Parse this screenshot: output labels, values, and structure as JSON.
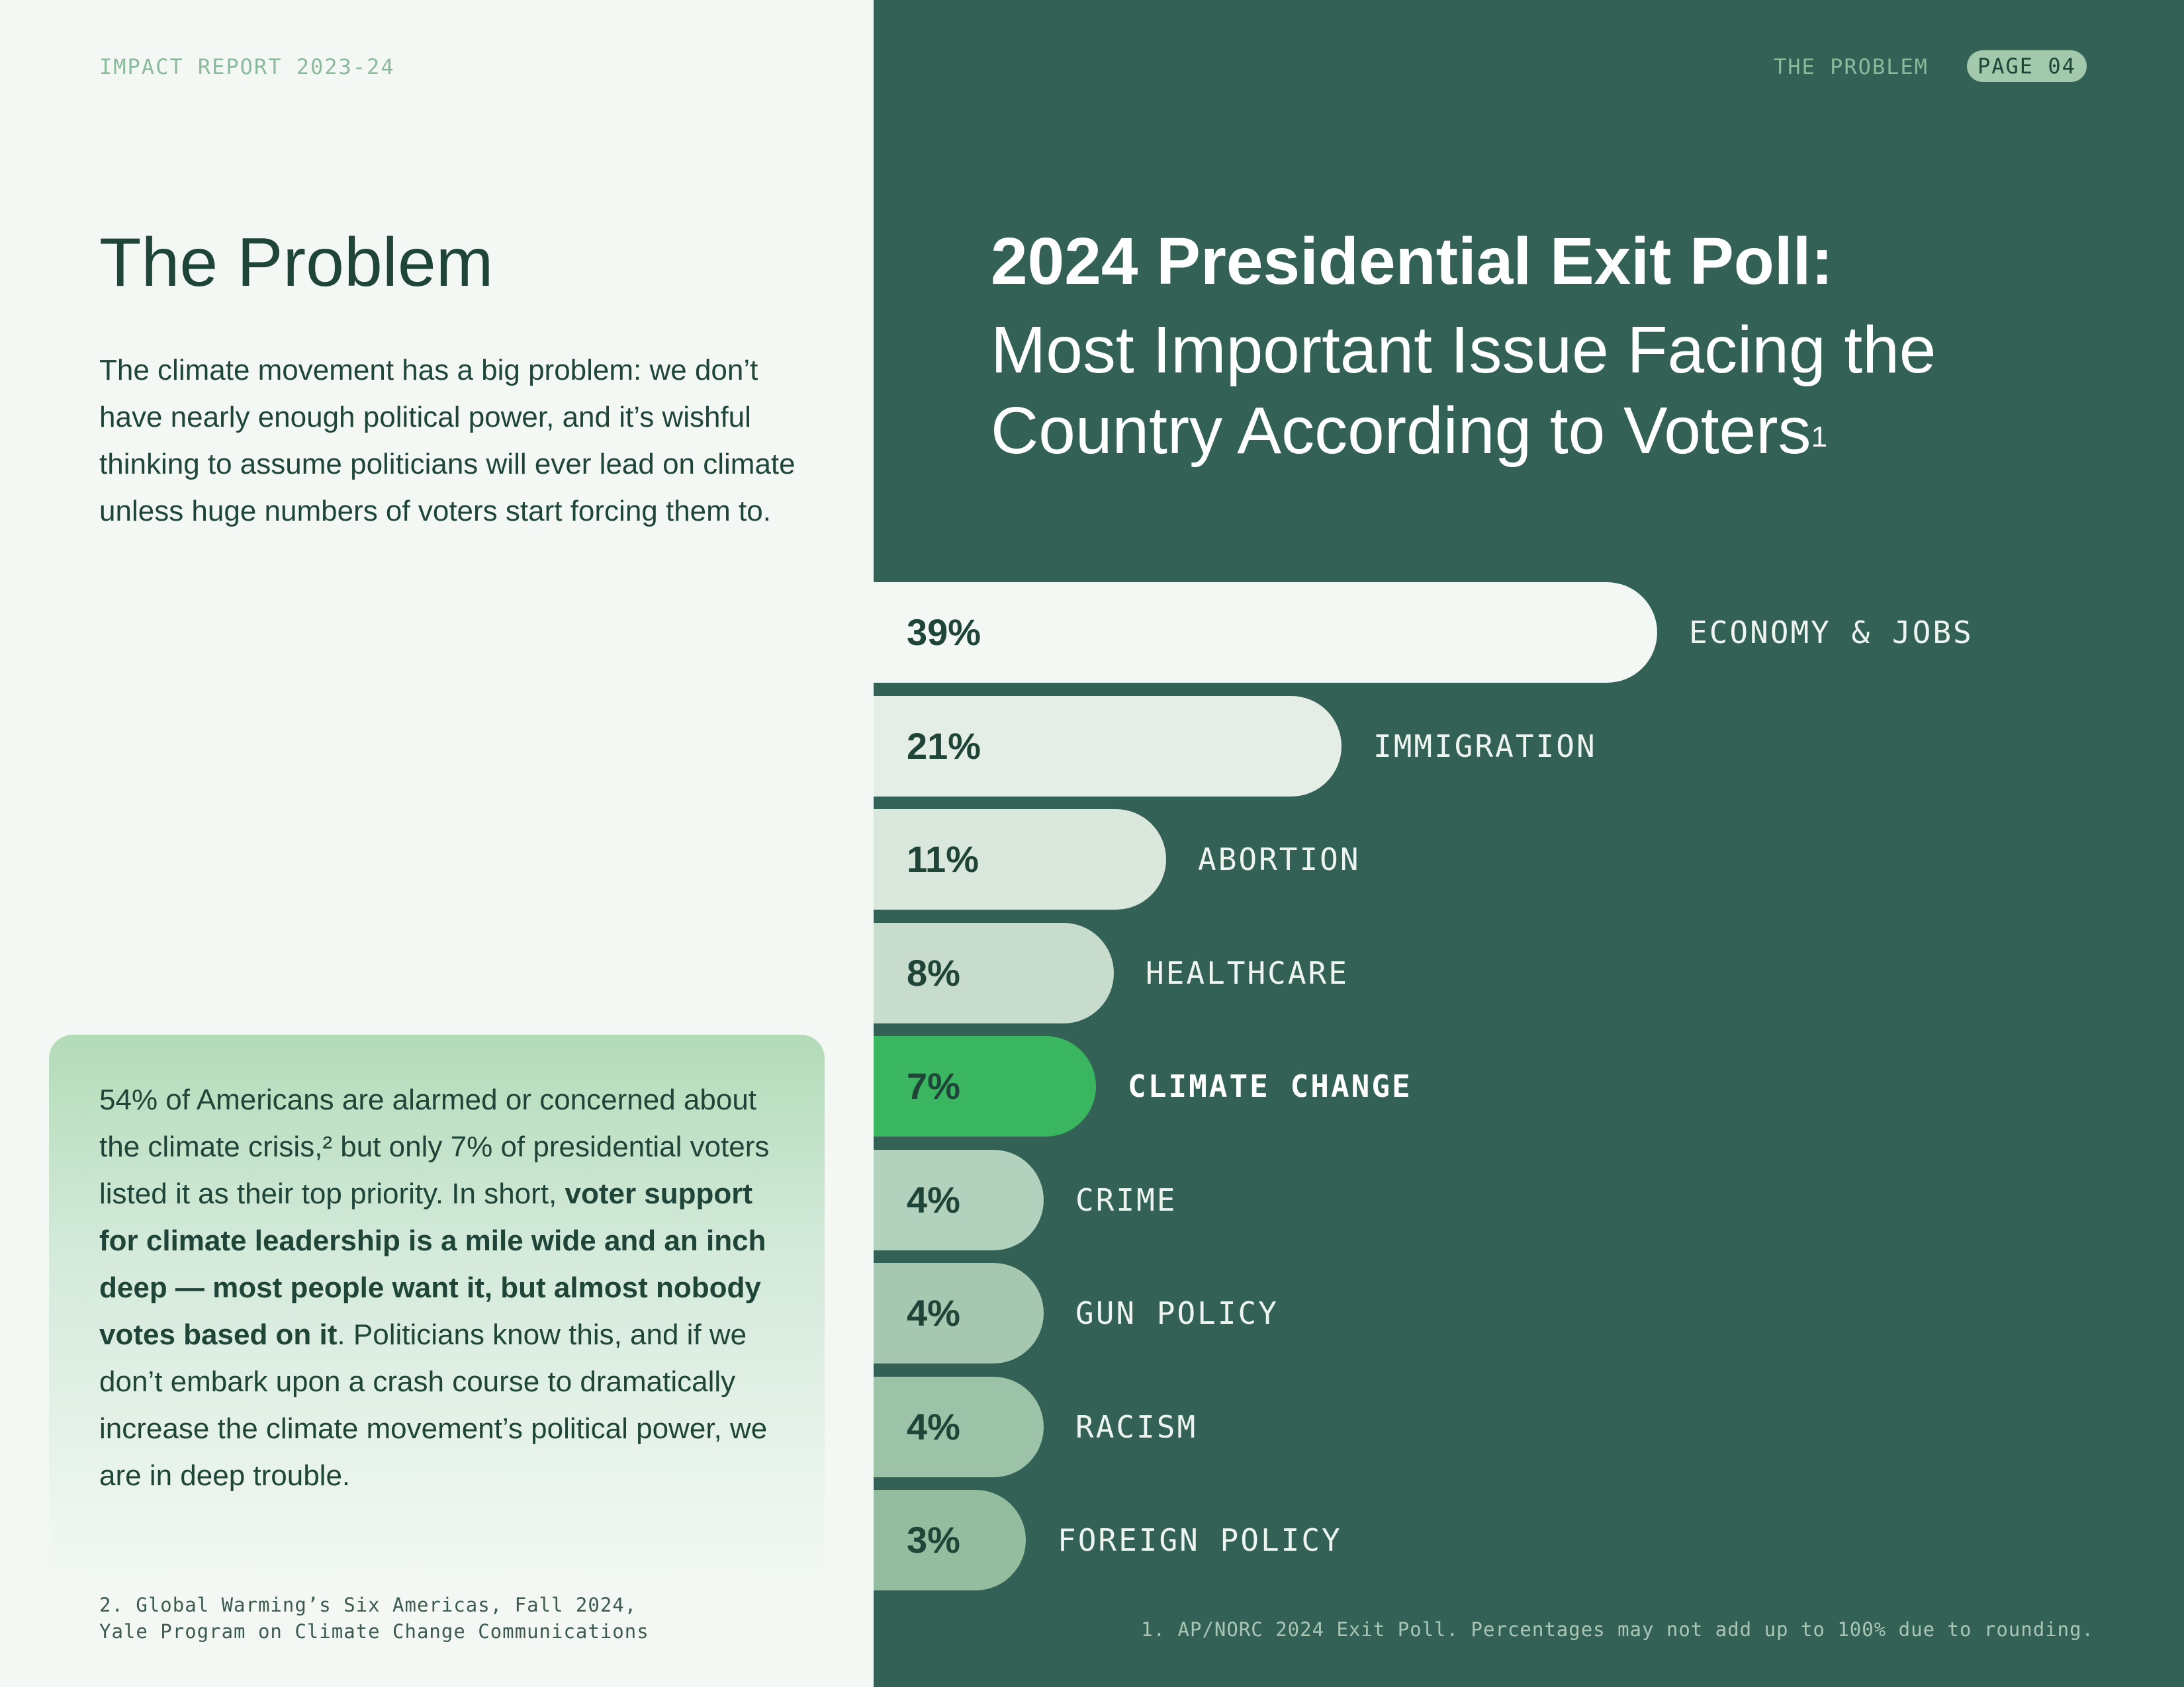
{
  "header": {
    "report": "IMPACT REPORT 2023-24",
    "section": "THE PROBLEM",
    "page": "PAGE 04"
  },
  "left": {
    "title": "The Problem",
    "intro": "The climate movement has a big problem: we don’t have nearly enough political power, and it’s wishful thinking to assume politicians will ever lead on climate unless huge numbers of voters start forcing them to.",
    "callout": {
      "text_before": "54% of Americans are alarmed or concerned about the climate crisis,² but only 7% of presidential voters listed it as their top priority. In short, ",
      "text_bold": "voter support for climate leadership is a mile wide and an inch deep — most people want it, but almost nobody votes based on it",
      "text_after": ". Politicians know this, and if we don’t embark upon a crash course to dramatically increase the climate movement’s political power, we are in deep trouble."
    },
    "footnote_lines": [
      "2. Global Warming’s Six Americas, Fall 2024,",
      "Yale Program on Climate Change Communications"
    ]
  },
  "chart_data": {
    "type": "bar",
    "orientation": "horizontal",
    "title": "2024 Presidential Exit Poll:",
    "subtitle": "Most Important Issue Facing the Country According to Voters",
    "subtitle_note_marker": "1",
    "categories": [
      "ECONOMY & JOBS",
      "IMMIGRATION",
      "ABORTION",
      "HEALTHCARE",
      "CLIMATE CHANGE",
      "CRIME",
      "GUN POLICY",
      "RACISM",
      "FOREIGN POLICY"
    ],
    "values": [
      39,
      21,
      11,
      8,
      7,
      4,
      4,
      4,
      3
    ],
    "value_labels": [
      "39%",
      "21%",
      "11%",
      "8%",
      "7%",
      "4%",
      "4%",
      "4%",
      "3%"
    ],
    "highlight": "CLIMATE CHANGE",
    "unit": "%",
    "footnote": "1. AP/NORC 2024 Exit Poll. Percentages may not add up to 100% due to rounding."
  },
  "colors": {
    "panel": "#346156",
    "highlight": "#3bb660",
    "bar_fills": [
      "#f3f8f4",
      "#e4ede6",
      "#d9e7dd",
      "#c7dccd",
      "#3bb660",
      "#b3d2bd",
      "#a6c8b1",
      "#9cc2a7",
      "#94bd9f"
    ]
  }
}
